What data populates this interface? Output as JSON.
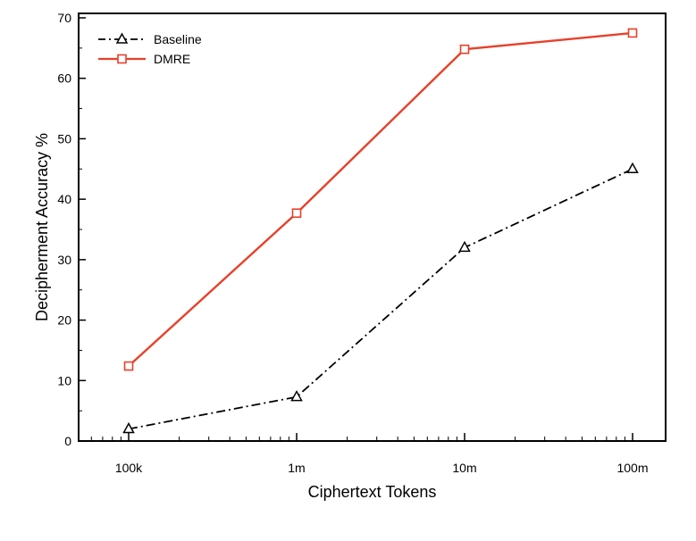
{
  "chart_data": {
    "type": "line",
    "xlabel": "Ciphertext Tokens",
    "ylabel": "Decipherment Accuracy %",
    "x_scale": "log",
    "categories": [
      "100k",
      "1m",
      "10m",
      "100m"
    ],
    "x": [
      100000,
      1000000,
      10000000,
      100000000
    ],
    "ylim": [
      0,
      70
    ],
    "yticks": [
      0,
      10,
      20,
      30,
      40,
      50,
      60,
      70
    ],
    "grid": false,
    "legend_position": "top-left",
    "series": [
      {
        "name": "Baseline",
        "values": [
          2,
          7.3,
          32,
          45
        ],
        "color": "#000000",
        "line_style": "dash-dot",
        "marker": "triangle"
      },
      {
        "name": "DMRE",
        "values": [
          12.4,
          37.7,
          64.8,
          67.5
        ],
        "color": "#e8402a",
        "line_style": "solid",
        "marker": "square"
      }
    ]
  }
}
